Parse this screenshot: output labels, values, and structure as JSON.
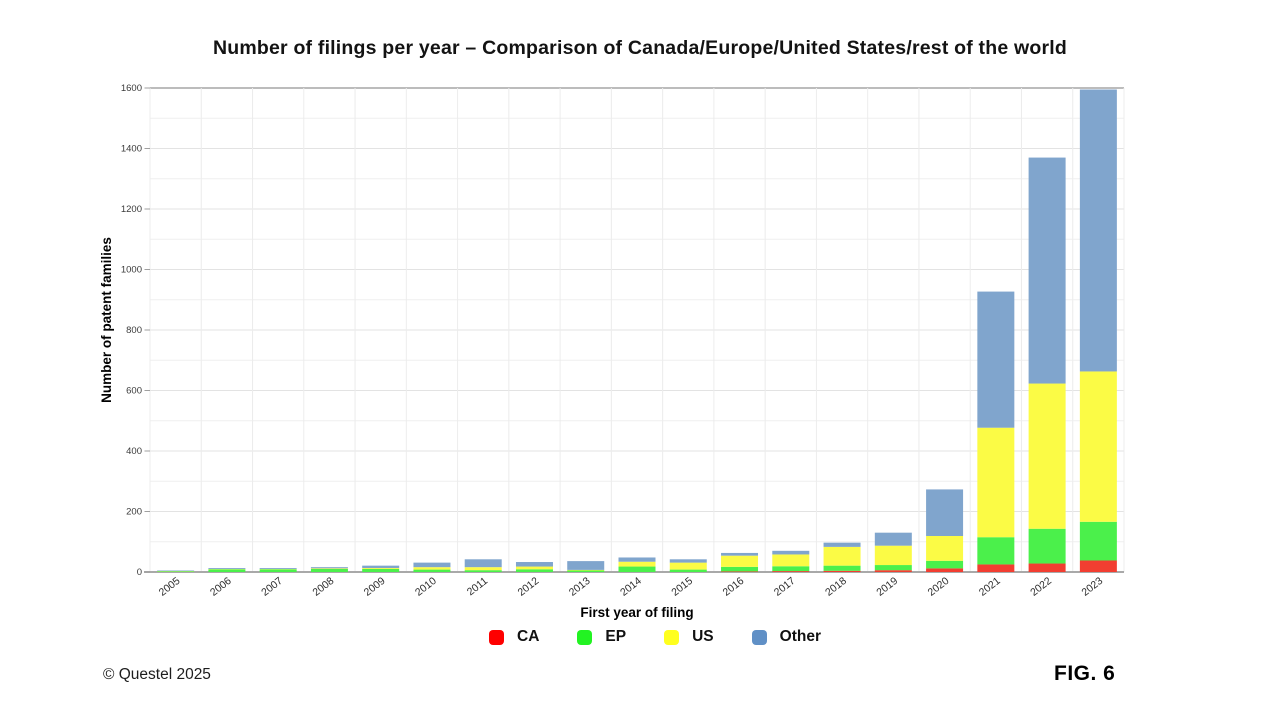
{
  "header": {
    "title": "Number of filings per year – Comparison of Canada/Europe/United States/rest of the world"
  },
  "chart_data": {
    "type": "bar",
    "stacked": true,
    "title": "Number of filings per year – Comparison of Canada/Europe/United States/rest of the world",
    "xlabel": "First year of filing",
    "ylabel": "Number of patent families",
    "categories": [
      "2005",
      "2006",
      "2007",
      "2008",
      "2009",
      "2010",
      "2011",
      "2012",
      "2013",
      "2014",
      "2015",
      "2016",
      "2017",
      "2018",
      "2019",
      "2020",
      "2021",
      "2022",
      "2023"
    ],
    "series": [
      {
        "name": "CA",
        "color": "#f23e31",
        "legend_color": "#fe0000",
        "values": [
          0,
          0,
          0,
          0,
          0,
          0,
          0,
          0,
          0,
          0,
          0,
          2,
          3,
          4,
          6,
          12,
          25,
          28,
          38
        ]
      },
      {
        "name": "EP",
        "color": "#4bf04b",
        "legend_color": "#22f322",
        "values": [
          2,
          9,
          9,
          10,
          10,
          8,
          6,
          9,
          5,
          18,
          8,
          15,
          16,
          17,
          17,
          25,
          90,
          115,
          128
        ]
      },
      {
        "name": "US",
        "color": "#fbfb45",
        "legend_color": "#ffff1e",
        "values": [
          1,
          1,
          1,
          2,
          3,
          8,
          10,
          9,
          2,
          16,
          23,
          37,
          39,
          62,
          64,
          82,
          362,
          480,
          497
        ]
      },
      {
        "name": "Other",
        "color": "#80a5cd",
        "legend_color": "#6090c6",
        "values": [
          2,
          3,
          3,
          4,
          8,
          15,
          26,
          15,
          29,
          14,
          11,
          9,
          12,
          14,
          43,
          154,
          450,
          747,
          932
        ]
      }
    ],
    "totals": [
      5,
      13,
      13,
      16,
      21,
      31,
      42,
      33,
      36,
      48,
      42,
      63,
      70,
      97,
      130,
      273,
      927,
      1370,
      1595
    ],
    "ylim": [
      0,
      1600
    ],
    "y_major_step": 200,
    "y_minor_step": 100,
    "grid": true,
    "legend_position": "bottom"
  },
  "footer": {
    "copyright": "© Questel 2025",
    "figure_label": "FIG. 6"
  }
}
